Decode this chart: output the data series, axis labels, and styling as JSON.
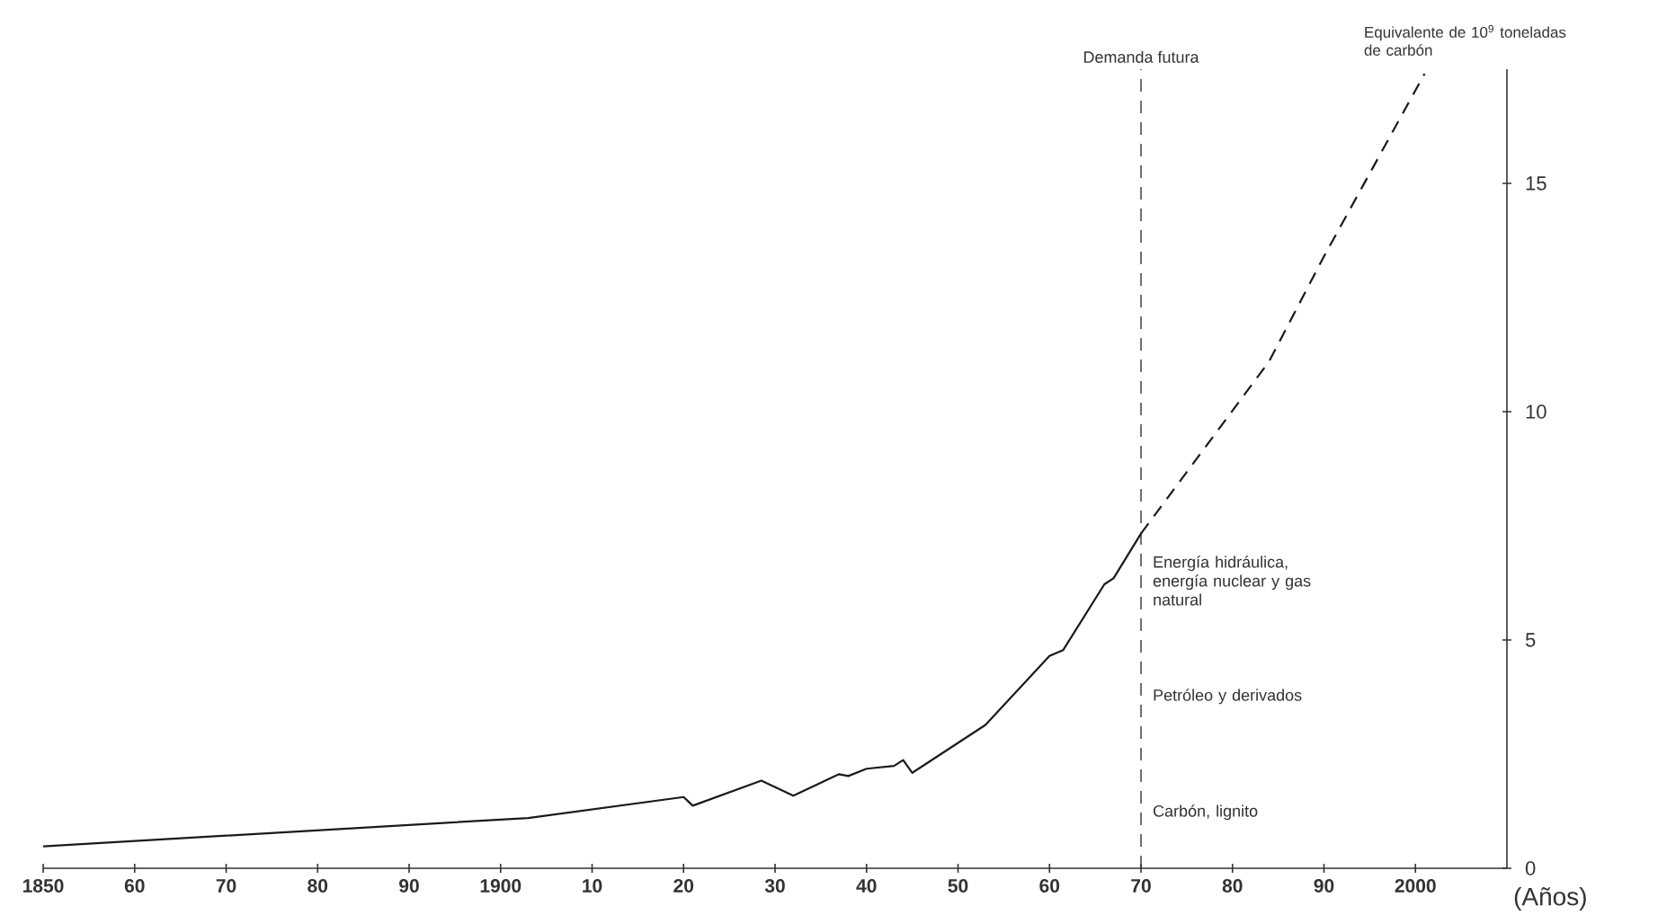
{
  "chart_data": {
    "type": "line",
    "xlabel": "(Años)",
    "ylabel": "Equivalente de 10$^{9}$ toneladas de carbón",
    "series": [
      {
        "color": "#1a1a1a",
        "line_style": "solid",
        "x": [
          1850,
          1903,
          1920,
          1921,
          1928.5,
          1932,
          1937,
          1938,
          1940,
          1943,
          1944,
          1945,
          1953,
          1960,
          1961.5,
          1966,
          1967,
          1970
        ],
        "values": [
          0.48,
          1.1,
          1.56,
          1.37,
          1.92,
          1.59,
          2.06,
          2.02,
          2.18,
          2.24,
          2.37,
          2.09,
          3.14,
          4.65,
          4.78,
          6.22,
          6.35,
          7.33
        ]
      },
      {
        "color": "#1a1a1a",
        "line_style": "dashed",
        "x": [
          1970,
          1984,
          1990,
          2001
        ],
        "values": [
          7.33,
          11.1,
          13.4,
          17.4
        ]
      }
    ],
    "xlim": [
      1850,
      2010
    ],
    "ylim": [
      0,
      17.5
    ],
    "xticks": [
      1850,
      {
        "value": 1860,
        "label": "60"
      },
      {
        "value": 1870,
        "label": "70"
      },
      {
        "value": 1880,
        "label": "80"
      },
      {
        "value": 1890,
        "label": "90"
      },
      1900,
      {
        "value": 1910,
        "label": "10"
      },
      {
        "value": 1920,
        "label": "20"
      },
      {
        "value": 1930,
        "label": "30"
      },
      {
        "value": 1940,
        "label": "40"
      },
      {
        "value": 1950,
        "label": "50"
      },
      {
        "value": 1960,
        "label": "60"
      },
      {
        "value": 1970,
        "label": "70"
      },
      {
        "value": 1980,
        "label": "80"
      },
      {
        "value": 1990,
        "label": "90"
      },
      2000
    ],
    "yticks": [
      0,
      5,
      10,
      15
    ],
    "ref_lines": [
      {
        "axis": "x",
        "value": 1970,
        "label": "Demanda futura",
        "line_style": "dashed"
      }
    ],
    "annotations": [
      "Energía hidráulica, energía nuclear y gas natural",
      "Petróleo y derivados",
      "Carbón, lignito"
    ],
    "grid": false
  }
}
